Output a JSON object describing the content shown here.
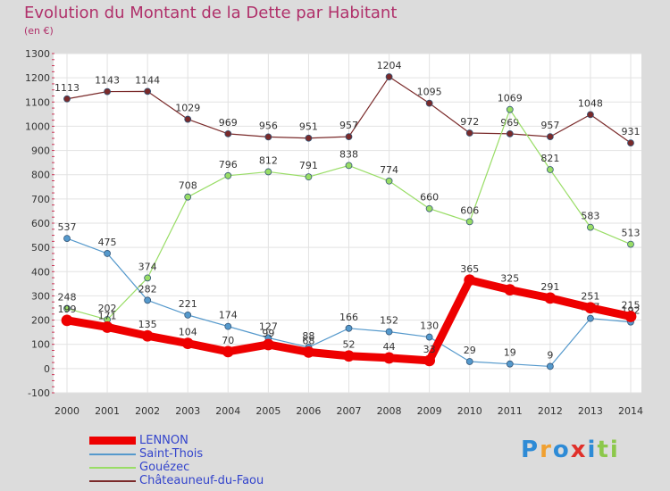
{
  "title": "Evolution du Montant de la Dette par Habitant",
  "unit": "(en €)",
  "logo": {
    "letters": [
      "P",
      "r",
      "o",
      "x",
      "i",
      "t",
      "i"
    ],
    "colors": [
      "#2e8bd6",
      "#f0a030",
      "#2e8bd6",
      "#e0302a",
      "#2e8bd6",
      "#8cc84b",
      "#8cc84b"
    ]
  },
  "chart_data": {
    "type": "line",
    "x": [
      "2000",
      "2001",
      "2002",
      "2003",
      "2004",
      "2005",
      "2006",
      "2007",
      "2008",
      "2009",
      "2010",
      "2011",
      "2012",
      "2013",
      "2014"
    ],
    "ylim": [
      -100,
      1300
    ],
    "yticks": [
      "-100",
      "0",
      "100",
      "200",
      "300",
      "400",
      "500",
      "600",
      "700",
      "800",
      "900",
      "1000",
      "1100",
      "1200",
      "1300"
    ],
    "grid": true,
    "legend_position": "bottom-left",
    "series": [
      {
        "name": "Châteauneuf-du-Faou",
        "color": "#7a2a2a",
        "width": 1.2,
        "values": [
          1113,
          1143,
          1144,
          1029,
          969,
          956,
          951,
          957,
          1204,
          1095,
          972,
          969,
          957,
          1048,
          931
        ],
        "labels": [
          "1113",
          "1143",
          "1144",
          "1029",
          "969",
          "956",
          "951",
          "957",
          "1204",
          "1095",
          "972",
          "969",
          "957",
          "1048",
          "931"
        ]
      },
      {
        "name": "Gouézec",
        "color": "#99dd66",
        "width": 1.2,
        "values": [
          248,
          202,
          374,
          708,
          796,
          812,
          791,
          838,
          774,
          660,
          606,
          1069,
          821,
          583,
          513
        ],
        "labels": [
          "248",
          "202",
          "374",
          "708",
          "796",
          "812",
          "791",
          "838",
          "774",
          "660",
          "606",
          "1069",
          "821",
          "583",
          "513"
        ]
      },
      {
        "name": "Saint-Thois",
        "color": "#5599cc",
        "width": 1.2,
        "values": [
          537,
          475,
          282,
          221,
          174,
          127,
          88,
          166,
          152,
          130,
          29,
          19,
          9,
          207,
          192
        ],
        "labels": [
          "537",
          "475",
          "282",
          "221",
          "174",
          "127",
          "88",
          "166",
          "152",
          "130",
          "29",
          "19",
          "9",
          "207",
          "192"
        ]
      },
      {
        "name": "LENNON",
        "color": "#ee0000",
        "width": 9,
        "values": [
          199,
          171,
          135,
          104,
          70,
          99,
          68,
          52,
          44,
          33,
          365,
          325,
          291,
          251,
          215
        ],
        "labels": [
          "199",
          "171",
          "135",
          "104",
          "70",
          "99",
          "68",
          "52",
          "44",
          "33",
          "365",
          "325",
          "291",
          "251",
          "215"
        ]
      }
    ],
    "legend_order": [
      "LENNON",
      "Saint-Thois",
      "Gouézec",
      "Châteauneuf-du-Faou"
    ]
  }
}
